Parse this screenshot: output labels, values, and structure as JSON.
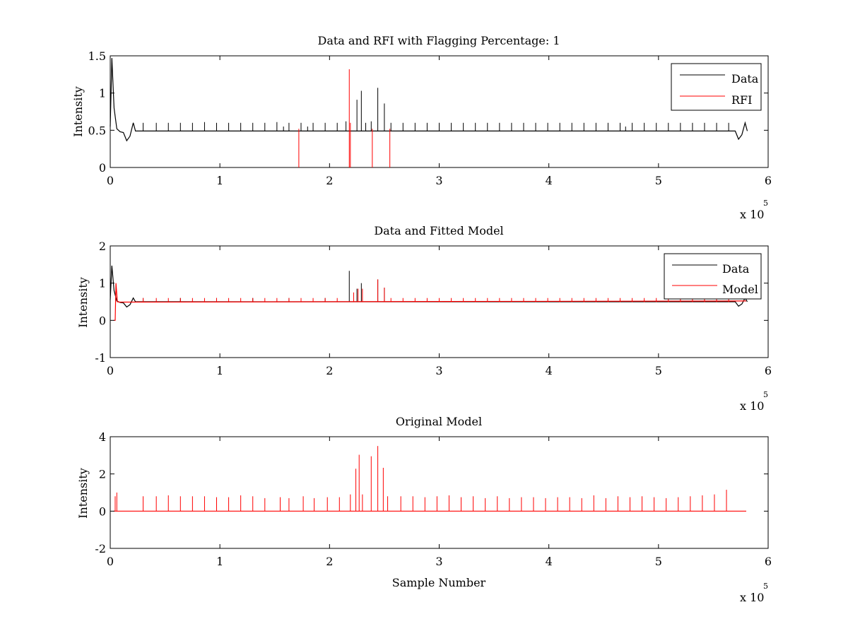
{
  "figure": {
    "background": "#ffffff",
    "data_color": "#000000",
    "rfi_color": "#ff0000"
  },
  "chart_data": [
    {
      "type": "line",
      "title": "Data and RFI with Flagging Percentage: 1",
      "xlabel": "",
      "ylabel": "Intensity",
      "xlim": [
        0,
        600000
      ],
      "ylim": [
        0,
        1.5
      ],
      "xticks": [
        0,
        100000,
        200000,
        300000,
        400000,
        500000,
        600000
      ],
      "xtick_labels": [
        "0",
        "1",
        "2",
        "3",
        "4",
        "5",
        "6"
      ],
      "yticks": [
        0,
        0.5,
        1,
        1.5
      ],
      "ytick_labels": [
        "0",
        "0.5",
        "1",
        "1.5"
      ],
      "x_multiplier": "x 10",
      "x_multiplier_exp": "5",
      "legend": {
        "position": "top-right",
        "entries": [
          {
            "label": "Data",
            "color": "#000000"
          },
          {
            "label": "RFI",
            "color": "#ff0000"
          }
        ]
      },
      "series": [
        {
          "name": "Data",
          "color": "#000000",
          "baseline": 0.49,
          "profile": [
            [
              0,
              0.55
            ],
            [
              1500,
              1.47
            ],
            [
              3500,
              0.8
            ],
            [
              6000,
              0.52
            ],
            [
              9000,
              0.48
            ],
            [
              12000,
              0.47
            ],
            [
              15000,
              0.36
            ],
            [
              18000,
              0.42
            ],
            [
              21000,
              0.6
            ],
            [
              23000,
              0.49
            ],
            [
              570000,
              0.49
            ],
            [
              573000,
              0.38
            ],
            [
              576000,
              0.44
            ],
            [
              579000,
              0.6
            ],
            [
              581000,
              0.49
            ]
          ],
          "spikes": [
            [
              30000,
              0.6
            ],
            [
              42000,
              0.6
            ],
            [
              53000,
              0.6
            ],
            [
              64000,
              0.6
            ],
            [
              75000,
              0.6
            ],
            [
              86000,
              0.61
            ],
            [
              97000,
              0.6
            ],
            [
              108000,
              0.6
            ],
            [
              119000,
              0.6
            ],
            [
              130000,
              0.6
            ],
            [
              141000,
              0.6
            ],
            [
              152000,
              0.61
            ],
            [
              158000,
              0.55
            ],
            [
              163000,
              0.6
            ],
            [
              174000,
              0.6
            ],
            [
              180000,
              0.55
            ],
            [
              185000,
              0.6
            ],
            [
              196000,
              0.6
            ],
            [
              207000,
              0.6
            ],
            [
              215000,
              0.62
            ],
            [
              225000,
              0.91
            ],
            [
              229000,
              1.03
            ],
            [
              233000,
              0.6
            ],
            [
              238000,
              0.62
            ],
            [
              244000,
              1.07
            ],
            [
              250000,
              0.86
            ],
            [
              256000,
              0.6
            ],
            [
              267000,
              0.6
            ],
            [
              278000,
              0.6
            ],
            [
              289000,
              0.6
            ],
            [
              300000,
              0.6
            ],
            [
              311000,
              0.6
            ],
            [
              322000,
              0.6
            ],
            [
              333000,
              0.6
            ],
            [
              344000,
              0.6
            ],
            [
              355000,
              0.6
            ],
            [
              366000,
              0.6
            ],
            [
              377000,
              0.6
            ],
            [
              388000,
              0.6
            ],
            [
              399000,
              0.6
            ],
            [
              410000,
              0.6
            ],
            [
              421000,
              0.6
            ],
            [
              432000,
              0.6
            ],
            [
              443000,
              0.6
            ],
            [
              454000,
              0.6
            ],
            [
              465000,
              0.6
            ],
            [
              470000,
              0.55
            ],
            [
              476000,
              0.6
            ],
            [
              487000,
              0.6
            ],
            [
              498000,
              0.6
            ],
            [
              509000,
              0.6
            ],
            [
              520000,
              0.6
            ],
            [
              531000,
              0.6
            ],
            [
              542000,
              0.6
            ],
            [
              553000,
              0.6
            ],
            [
              564000,
              0.6
            ]
          ]
        },
        {
          "name": "RFI",
          "color": "#ff0000",
          "spikes": [
            [
              218000,
              1.32
            ],
            [
              219000,
              0.6
            ],
            [
              172000,
              0.52
            ],
            [
              239000,
              0.52
            ],
            [
              255000,
              0.52
            ]
          ]
        }
      ]
    },
    {
      "type": "line",
      "title": "Data and Fitted Model",
      "xlabel": "",
      "ylabel": "Intensity",
      "xlim": [
        0,
        600000
      ],
      "ylim": [
        -1,
        2
      ],
      "xticks": [
        0,
        100000,
        200000,
        300000,
        400000,
        500000,
        600000
      ],
      "xtick_labels": [
        "0",
        "1",
        "2",
        "3",
        "4",
        "5",
        "6"
      ],
      "yticks": [
        -1,
        0,
        1,
        2
      ],
      "ytick_labels": [
        "-1",
        "0",
        "1",
        "2"
      ],
      "x_multiplier": "x 10",
      "x_multiplier_exp": "5",
      "legend": {
        "position": "top-right",
        "entries": [
          {
            "label": "Data",
            "color": "#000000"
          },
          {
            "label": "Model",
            "color": "#ff0000"
          }
        ]
      },
      "series": [
        {
          "name": "Data",
          "color": "#000000",
          "baseline": 0.5,
          "profile": [
            [
              0,
              0.55
            ],
            [
              1500,
              1.47
            ],
            [
              3500,
              0.8
            ],
            [
              6000,
              0.52
            ],
            [
              9000,
              0.48
            ],
            [
              12000,
              0.47
            ],
            [
              15000,
              0.36
            ],
            [
              18000,
              0.42
            ],
            [
              21000,
              0.6
            ],
            [
              23000,
              0.5
            ],
            [
              570000,
              0.5
            ],
            [
              573000,
              0.38
            ],
            [
              576000,
              0.44
            ],
            [
              579000,
              0.6
            ],
            [
              581000,
              0.5
            ]
          ],
          "spikes": [
            [
              218000,
              1.33
            ],
            [
              225000,
              0.85
            ],
            [
              229000,
              1.0
            ],
            [
              244000,
              1.1
            ],
            [
              250000,
              0.88
            ],
            [
              30000,
              0.6
            ],
            [
              64000,
              0.6
            ],
            [
              97000,
              0.6
            ],
            [
              130000,
              0.6
            ],
            [
              163000,
              0.6
            ],
            [
              196000,
              0.6
            ]
          ]
        },
        {
          "name": "Model",
          "color": "#ff0000",
          "baseline": 0.49,
          "profile": [
            [
              3000,
              0.0
            ],
            [
              4500,
              0.0
            ],
            [
              5200,
              1.0
            ],
            [
              6500,
              0.5
            ],
            [
              8000,
              0.49
            ],
            [
              580000,
              0.52
            ]
          ],
          "spikes": [
            [
              30000,
              0.6
            ],
            [
              42000,
              0.6
            ],
            [
              53000,
              0.6
            ],
            [
              64000,
              0.6
            ],
            [
              75000,
              0.6
            ],
            [
              86000,
              0.6
            ],
            [
              97000,
              0.6
            ],
            [
              108000,
              0.6
            ],
            [
              119000,
              0.6
            ],
            [
              130000,
              0.6
            ],
            [
              141000,
              0.6
            ],
            [
              152000,
              0.6
            ],
            [
              163000,
              0.6
            ],
            [
              174000,
              0.6
            ],
            [
              185000,
              0.6
            ],
            [
              196000,
              0.6
            ],
            [
              207000,
              0.6
            ],
            [
              222000,
              0.75
            ],
            [
              226000,
              0.85
            ],
            [
              230000,
              0.85
            ],
            [
              244000,
              1.1
            ],
            [
              250000,
              0.88
            ],
            [
              256000,
              0.6
            ],
            [
              267000,
              0.6
            ],
            [
              278000,
              0.6
            ],
            [
              289000,
              0.6
            ],
            [
              300000,
              0.6
            ],
            [
              311000,
              0.6
            ],
            [
              322000,
              0.6
            ],
            [
              333000,
              0.6
            ],
            [
              344000,
              0.6
            ],
            [
              355000,
              0.6
            ],
            [
              366000,
              0.6
            ],
            [
              377000,
              0.6
            ],
            [
              388000,
              0.6
            ],
            [
              399000,
              0.6
            ],
            [
              410000,
              0.6
            ],
            [
              421000,
              0.6
            ],
            [
              432000,
              0.6
            ],
            [
              443000,
              0.6
            ],
            [
              454000,
              0.6
            ],
            [
              465000,
              0.6
            ],
            [
              476000,
              0.6
            ],
            [
              487000,
              0.6
            ],
            [
              498000,
              0.6
            ],
            [
              509000,
              0.6
            ],
            [
              520000,
              0.6
            ],
            [
              531000,
              0.6
            ],
            [
              542000,
              0.6
            ],
            [
              553000,
              0.6
            ],
            [
              564000,
              0.6
            ]
          ]
        }
      ]
    },
    {
      "type": "line",
      "title": "Original Model",
      "xlabel": "Sample Number",
      "ylabel": "Intensity",
      "xlim": [
        0,
        600000
      ],
      "ylim": [
        -2,
        4
      ],
      "xticks": [
        0,
        100000,
        200000,
        300000,
        400000,
        500000,
        600000
      ],
      "xtick_labels": [
        "0",
        "1",
        "2",
        "3",
        "4",
        "5",
        "6"
      ],
      "yticks": [
        -2,
        0,
        2,
        4
      ],
      "ytick_labels": [
        "-2",
        "0",
        "2",
        "4"
      ],
      "x_multiplier": "x 10",
      "x_multiplier_exp": "5",
      "legend": null,
      "series": [
        {
          "name": "Model",
          "color": "#ff0000",
          "baseline": 0.0,
          "profile": [
            [
              3000,
              0.0
            ],
            [
              580000,
              0.0
            ]
          ],
          "spikes": [
            [
              4500,
              0.8
            ],
            [
              6000,
              1.0
            ],
            [
              30000,
              0.8
            ],
            [
              42000,
              0.8
            ],
            [
              53000,
              0.85
            ],
            [
              64000,
              0.8
            ],
            [
              75000,
              0.8
            ],
            [
              86000,
              0.8
            ],
            [
              97000,
              0.75
            ],
            [
              108000,
              0.75
            ],
            [
              119000,
              0.85
            ],
            [
              130000,
              0.8
            ],
            [
              141000,
              0.7
            ],
            [
              155000,
              0.75
            ],
            [
              163000,
              0.7
            ],
            [
              176000,
              0.8
            ],
            [
              186000,
              0.7
            ],
            [
              198000,
              0.75
            ],
            [
              209000,
              0.75
            ],
            [
              219000,
              0.9
            ],
            [
              224000,
              2.28
            ],
            [
              227000,
              3.03
            ],
            [
              230000,
              0.9
            ],
            [
              238000,
              2.95
            ],
            [
              244000,
              3.5
            ],
            [
              249000,
              2.33
            ],
            [
              253000,
              0.8
            ],
            [
              265000,
              0.8
            ],
            [
              276000,
              0.8
            ],
            [
              287000,
              0.75
            ],
            [
              298000,
              0.8
            ],
            [
              309000,
              0.85
            ],
            [
              320000,
              0.75
            ],
            [
              331000,
              0.8
            ],
            [
              342000,
              0.7
            ],
            [
              353000,
              0.8
            ],
            [
              364000,
              0.7
            ],
            [
              375000,
              0.75
            ],
            [
              386000,
              0.75
            ],
            [
              397000,
              0.7
            ],
            [
              408000,
              0.75
            ],
            [
              419000,
              0.75
            ],
            [
              430000,
              0.7
            ],
            [
              441000,
              0.85
            ],
            [
              452000,
              0.7
            ],
            [
              463000,
              0.8
            ],
            [
              474000,
              0.75
            ],
            [
              485000,
              0.8
            ],
            [
              496000,
              0.75
            ],
            [
              507000,
              0.7
            ],
            [
              518000,
              0.75
            ],
            [
              529000,
              0.8
            ],
            [
              540000,
              0.85
            ],
            [
              551000,
              0.9
            ],
            [
              562000,
              1.15
            ]
          ]
        }
      ]
    }
  ]
}
